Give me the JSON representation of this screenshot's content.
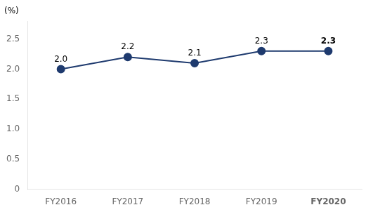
{
  "chart_data": {
    "type": "line",
    "ylabel": "(%)",
    "categories": [
      "FY2016",
      "FY2017",
      "FY2018",
      "FY2019",
      "FY2020"
    ],
    "values": [
      2.0,
      2.2,
      2.1,
      2.3,
      2.3
    ],
    "value_labels": [
      "2.0",
      "2.2",
      "2.1",
      "2.3",
      "2.3"
    ],
    "color": "#1e3a6e",
    "marker": "circle",
    "ylim": [
      0,
      2.8
    ],
    "yticks": [
      0,
      0.5,
      {
        "value": 1.0,
        "label": "1.0"
      },
      1.5,
      {
        "value": 2.0,
        "label": "2.0"
      },
      2.5
    ],
    "grid": false,
    "data_labels": true
  }
}
